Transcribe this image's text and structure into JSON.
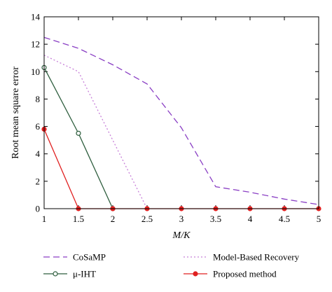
{
  "chart_data": {
    "type": "line",
    "xlabel": "M/K",
    "ylabel": "Root mean square error",
    "xlim": [
      1,
      5
    ],
    "ylim": [
      0,
      14
    ],
    "x_ticks": [
      "1",
      "1.5",
      "2",
      "2.5",
      "3",
      "3.5",
      "4",
      "4.5",
      "5"
    ],
    "y_ticks": [
      "0",
      "2",
      "4",
      "6",
      "8",
      "10",
      "12",
      "14"
    ],
    "grid": false,
    "legend_position": "bottom",
    "series": [
      {
        "name": "CoSaMP",
        "color": "#8a3fc4",
        "style": "dashed",
        "marker": "none",
        "x": [
          1,
          1.5,
          2,
          2.5,
          3,
          3.5,
          4,
          4.5,
          5
        ],
        "y": [
          12.5,
          11.7,
          10.5,
          9.1,
          5.9,
          1.6,
          1.2,
          0.7,
          0.3
        ]
      },
      {
        "name": "Model-Based Recovery",
        "color": "#c77fd8",
        "style": "dotted",
        "marker": "none",
        "x": [
          1,
          1.5,
          2,
          2.5
        ],
        "y": [
          11.2,
          10.0,
          5.0,
          0
        ]
      },
      {
        "name": "μ-IHT",
        "color": "#2e5e3e",
        "style": "solid",
        "marker": "open-circle",
        "x": [
          1,
          1.5,
          2
        ],
        "y": [
          10.3,
          5.5,
          0
        ]
      },
      {
        "name": "Proposed method",
        "color": "#e02020",
        "style": "solid",
        "marker": "filled-circle",
        "x": [
          1,
          1.5,
          2,
          2.5,
          3,
          3.5,
          4,
          4.5,
          5
        ],
        "y": [
          5.8,
          0,
          0,
          0,
          0,
          0,
          0,
          0,
          0
        ]
      }
    ]
  }
}
